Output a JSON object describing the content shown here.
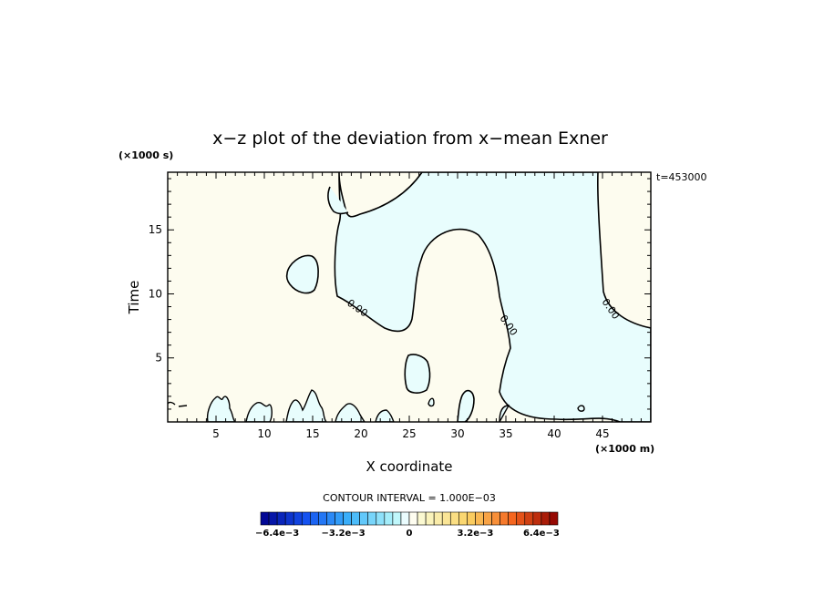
{
  "chart_data": {
    "type": "heatmap",
    "title": "x−z plot of the deviation from x−mean Exner",
    "xlabel": "X coordinate",
    "ylabel": "Time",
    "x_unit": "(×1000 m)",
    "y_unit": "(×1000 s)",
    "time_label": "t=453000",
    "xlim": [
      0,
      50
    ],
    "ylim": [
      0,
      19.5
    ],
    "x_ticks": [
      5,
      10,
      15,
      20,
      25,
      30,
      35,
      40,
      45
    ],
    "y_ticks": [
      5,
      10,
      15
    ],
    "contour_label": "0.00",
    "contour_interval_text": "CONTOUR INTERVAL = 1.000E−03",
    "colorbar": {
      "range": [
        -0.0072,
        0.0072
      ],
      "tick_values": [
        -0.0064,
        -0.0032,
        0,
        0.0032,
        0.0064
      ],
      "tick_labels": [
        "−6.4e−3",
        "−3.2e−3",
        "0",
        "3.2e−3",
        "6.4e−3"
      ]
    },
    "fill_colors": {
      "negative_small": "#e8fdfd",
      "positive_small": "#fdfcef"
    }
  }
}
